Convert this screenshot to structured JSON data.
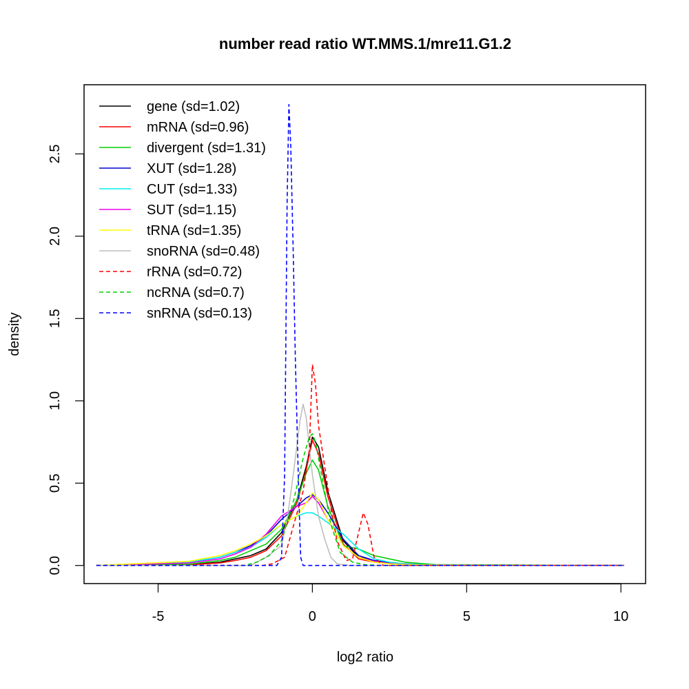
{
  "chart_data": {
    "type": "line",
    "title": "number read ratio WT.MMS.1/mre11.G1.2",
    "xlabel": "log2 ratio",
    "ylabel": "density",
    "xlim": [
      -7.4,
      10.8
    ],
    "ylim": [
      -0.11,
      2.92
    ],
    "xticks": [
      -5,
      0,
      5,
      10
    ],
    "xtick_labels": [
      "-5",
      "0",
      "5",
      "10"
    ],
    "yticks": [
      0.0,
      0.5,
      1.0,
      1.5,
      2.0,
      2.5
    ],
    "ytick_labels": [
      "0.0",
      "0.5",
      "1.0",
      "1.5",
      "2.0",
      "2.5"
    ],
    "grid": false,
    "legend_position": "top-left",
    "series": [
      {
        "name": "gene (sd=1.02)",
        "color": "#000000",
        "dash": "solid",
        "x": [
          -7,
          -4,
          -3,
          -2.5,
          -2,
          -1.5,
          -1,
          -0.5,
          -0.2,
          0,
          0.2,
          0.5,
          1,
          1.5,
          2,
          2.5,
          3,
          4,
          10.1
        ],
        "y": [
          0,
          0.005,
          0.02,
          0.04,
          0.06,
          0.1,
          0.2,
          0.4,
          0.6,
          0.78,
          0.72,
          0.45,
          0.15,
          0.05,
          0.03,
          0.015,
          0.01,
          0.003,
          0
        ]
      },
      {
        "name": "mRNA (sd=0.96)",
        "color": "#ff0000",
        "dash": "solid",
        "x": [
          -7,
          -4,
          -3,
          -2.5,
          -2,
          -1.5,
          -1,
          -0.5,
          -0.2,
          0,
          0.2,
          0.5,
          1,
          1.5,
          2,
          2.5,
          3,
          4,
          10.1
        ],
        "y": [
          0,
          0.004,
          0.015,
          0.03,
          0.05,
          0.09,
          0.18,
          0.38,
          0.58,
          0.76,
          0.68,
          0.42,
          0.13,
          0.04,
          0.02,
          0.012,
          0.008,
          0.002,
          0
        ]
      },
      {
        "name": "divergent (sd=1.31)",
        "color": "#00cd00",
        "dash": "solid",
        "x": [
          -7,
          -4,
          -3,
          -2.5,
          -2,
          -1.5,
          -1,
          -0.5,
          -0.2,
          0,
          0.2,
          0.5,
          1,
          1.5,
          2,
          2.5,
          3,
          4,
          10.1
        ],
        "y": [
          0,
          0.008,
          0.03,
          0.05,
          0.09,
          0.13,
          0.22,
          0.4,
          0.56,
          0.64,
          0.58,
          0.36,
          0.12,
          0.1,
          0.06,
          0.04,
          0.02,
          0.005,
          0
        ]
      },
      {
        "name": "XUT (sd=1.28)",
        "color": "#0000cd",
        "dash": "solid",
        "x": [
          -7,
          -4,
          -3,
          -2.5,
          -2,
          -1.5,
          -1,
          -0.5,
          -0.2,
          0,
          0.2,
          0.5,
          1,
          1.5,
          2,
          2.5,
          3,
          4,
          10.1
        ],
        "y": [
          0,
          0.02,
          0.05,
          0.08,
          0.12,
          0.18,
          0.28,
          0.36,
          0.41,
          0.43,
          0.4,
          0.32,
          0.16,
          0.06,
          0.03,
          0.015,
          0.008,
          0.003,
          0
        ]
      },
      {
        "name": "CUT (sd=1.33)",
        "color": "#00eeee",
        "dash": "solid",
        "x": [
          -7,
          -4,
          -3,
          -2.5,
          -2,
          -1.5,
          -1,
          -0.5,
          -0.2,
          0,
          0.2,
          0.5,
          1,
          1.5,
          2,
          2.5,
          3,
          4,
          10.1
        ],
        "y": [
          0,
          0.02,
          0.05,
          0.08,
          0.11,
          0.17,
          0.25,
          0.3,
          0.32,
          0.32,
          0.3,
          0.26,
          0.19,
          0.1,
          0.04,
          0.02,
          0.01,
          0.003,
          0
        ]
      },
      {
        "name": "SUT (sd=1.15)",
        "color": "#ee00ee",
        "dash": "solid",
        "x": [
          -7,
          -4,
          -3,
          -2.5,
          -2,
          -1.5,
          -1,
          -0.5,
          -0.2,
          0,
          0.2,
          0.5,
          1,
          1.5,
          2,
          2.5,
          3,
          4,
          10.1
        ],
        "y": [
          0,
          0.015,
          0.04,
          0.07,
          0.11,
          0.19,
          0.3,
          0.36,
          0.38,
          0.42,
          0.38,
          0.28,
          0.12,
          0.05,
          0.025,
          0.012,
          0.006,
          0.002,
          0
        ]
      },
      {
        "name": "tRNA (sd=1.35)",
        "color": "#ffff00",
        "dash": "solid",
        "x": [
          -7,
          -4,
          -3,
          -2.5,
          -2,
          -1.5,
          -1,
          -0.5,
          -0.2,
          0,
          0.2,
          0.5,
          1,
          1.5,
          2,
          2.5,
          3,
          4,
          10.1
        ],
        "y": [
          0,
          0.025,
          0.06,
          0.09,
          0.13,
          0.18,
          0.25,
          0.3,
          0.38,
          0.44,
          0.4,
          0.28,
          0.12,
          0.05,
          0.02,
          0.01,
          0.005,
          0.002,
          0
        ]
      },
      {
        "name": "snoRNA (sd=0.48)",
        "color": "#bebebe",
        "dash": "solid",
        "x": [
          -7,
          -2,
          -1.5,
          -1,
          -0.8,
          -0.6,
          -0.4,
          -0.3,
          -0.2,
          0,
          0.2,
          0.4,
          0.6,
          0.8,
          1.2,
          2,
          10.1
        ],
        "y": [
          0,
          0,
          0.05,
          0.12,
          0.3,
          0.58,
          0.88,
          0.98,
          0.9,
          0.55,
          0.3,
          0.16,
          0.05,
          0.01,
          0,
          0,
          0
        ]
      },
      {
        "name": "rRNA (sd=0.72)",
        "color": "#ff0000",
        "dash": "dashed",
        "x": [
          -7,
          -1.6,
          -1.3,
          -0.9,
          -0.6,
          -0.3,
          -0.1,
          0,
          0.1,
          0.2,
          0.4,
          0.6,
          0.8,
          1.1,
          1.3,
          1.5,
          1.65,
          1.8,
          2.0,
          2.3,
          10.1
        ],
        "y": [
          0,
          0,
          0.01,
          0.05,
          0.25,
          0.45,
          0.7,
          1.22,
          1.1,
          0.85,
          0.6,
          0.35,
          0.15,
          0.03,
          0.04,
          0.2,
          0.32,
          0.25,
          0.05,
          0,
          0
        ]
      },
      {
        "name": "ncRNA (sd=0.7)",
        "color": "#00cd00",
        "dash": "dashed",
        "x": [
          -7,
          -2.2,
          -1.8,
          -1.4,
          -1.0,
          -0.6,
          -0.3,
          -0.1,
          0,
          0.1,
          0.3,
          0.6,
          0.9,
          1.3,
          1.7,
          2.2,
          10.1
        ],
        "y": [
          0,
          0,
          0.02,
          0.06,
          0.15,
          0.4,
          0.65,
          0.78,
          0.8,
          0.75,
          0.55,
          0.25,
          0.08,
          0.02,
          0.005,
          0,
          0
        ]
      },
      {
        "name": "snRNA (sd=0.13)",
        "color": "#0000ff",
        "dash": "dashed",
        "x": [
          -7,
          -1.15,
          -1.0,
          -0.9,
          -0.82,
          -0.76,
          -0.7,
          -0.62,
          -0.55,
          -0.45,
          -0.38,
          -0.3,
          10.1
        ],
        "y": [
          0,
          0,
          0.05,
          0.55,
          2.2,
          2.8,
          2.55,
          1.9,
          1.25,
          0.5,
          0.05,
          0,
          0
        ]
      }
    ]
  }
}
